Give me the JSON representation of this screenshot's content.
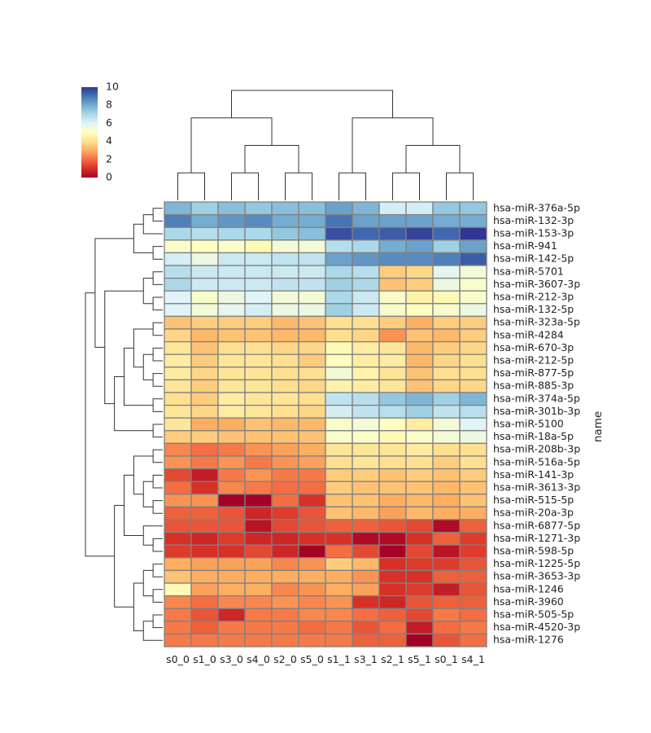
{
  "chart_data": {
    "type": "heatmap",
    "title": "",
    "xlabel": "",
    "ylabel": "name",
    "colormap": "RdYlBu",
    "vlim": [
      0,
      10
    ],
    "colorbar": {
      "ticks": [
        0,
        2,
        4,
        6,
        8,
        10
      ],
      "placement": "top-left"
    },
    "grid": true,
    "columns": [
      "s0_0",
      "s1_0",
      "s3_0",
      "s4_0",
      "s2_0",
      "s5_0",
      "s1_1",
      "s3_1",
      "s2_1",
      "s5_1",
      "s0_1",
      "s4_1"
    ],
    "rows": [
      "hsa-miR-376a-5p",
      "hsa-miR-132-3p",
      "hsa-miR-153-3p",
      "hsa-miR-941",
      "hsa-miR-142-5p",
      "hsa-miR-5701",
      "hsa-miR-3607-3p",
      "hsa-miR-212-3p",
      "hsa-miR-132-5p",
      "hsa-miR-323a-5p",
      "hsa-miR-4284",
      "hsa-miR-670-3p",
      "hsa-miR-212-5p",
      "hsa-miR-877-5p",
      "hsa-miR-885-3p",
      "hsa-miR-374a-5p",
      "hsa-miR-301b-3p",
      "hsa-miR-5100",
      "hsa-miR-18a-5p",
      "hsa-miR-208b-3p",
      "hsa-miR-516a-5p",
      "hsa-miR-141-3p",
      "hsa-miR-3613-3p",
      "hsa-miR-515-5p",
      "hsa-miR-20a-3p",
      "hsa-miR-6877-5p",
      "hsa-miR-1271-3p",
      "hsa-miR-598-5p",
      "hsa-miR-1225-5p",
      "hsa-miR-3653-3p",
      "hsa-miR-1246",
      "hsa-miR-3960",
      "hsa-miR-505-5p",
      "hsa-miR-4520-3p",
      "hsa-miR-1276"
    ],
    "values": [
      [
        7.8,
        7.2,
        7.6,
        7.4,
        7.6,
        7.6,
        8.2,
        7.8,
        6.2,
        6.2,
        7.4,
        7.4
      ],
      [
        8.8,
        8.0,
        8.4,
        8.6,
        8.0,
        8.0,
        9.0,
        8.2,
        8.2,
        8.2,
        8.0,
        8.0
      ],
      [
        7.0,
        6.8,
        7.0,
        7.0,
        7.4,
        7.6,
        9.6,
        9.2,
        9.4,
        9.8,
        9.2,
        10.0
      ],
      [
        5.2,
        5.0,
        5.2,
        4.8,
        5.4,
        5.4,
        6.8,
        7.0,
        8.0,
        8.2,
        7.2,
        8.2
      ],
      [
        6.2,
        5.6,
        6.4,
        6.4,
        6.6,
        6.6,
        8.2,
        8.4,
        8.6,
        8.6,
        8.8,
        9.4
      ],
      [
        6.8,
        6.4,
        6.4,
        6.4,
        6.4,
        6.4,
        7.0,
        6.8,
        3.6,
        3.8,
        5.8,
        5.4
      ],
      [
        7.0,
        6.4,
        6.4,
        6.4,
        6.6,
        6.6,
        7.2,
        7.0,
        3.4,
        3.6,
        5.6,
        5.2
      ],
      [
        6.0,
        5.2,
        5.6,
        6.0,
        5.4,
        5.4,
        7.0,
        6.4,
        5.2,
        4.6,
        4.8,
        5.2
      ],
      [
        6.0,
        5.4,
        5.8,
        6.2,
        5.6,
        5.6,
        7.2,
        6.4,
        5.2,
        5.0,
        5.2,
        5.6
      ],
      [
        3.4,
        3.6,
        3.6,
        3.6,
        3.2,
        3.4,
        4.0,
        4.0,
        3.6,
        3.0,
        3.6,
        3.6
      ],
      [
        3.8,
        3.2,
        3.4,
        3.4,
        3.2,
        3.2,
        4.0,
        3.8,
        2.6,
        3.4,
        3.2,
        3.6
      ],
      [
        4.2,
        3.4,
        4.0,
        4.0,
        3.8,
        3.8,
        4.8,
        4.4,
        4.2,
        3.2,
        3.6,
        3.8
      ],
      [
        4.4,
        3.6,
        4.2,
        4.2,
        4.0,
        3.6,
        5.0,
        4.4,
        4.4,
        3.2,
        3.8,
        4.0
      ],
      [
        4.4,
        3.8,
        4.2,
        4.2,
        4.0,
        4.0,
        5.4,
        4.6,
        4.2,
        3.4,
        4.0,
        4.0
      ],
      [
        4.2,
        3.6,
        4.2,
        4.2,
        4.0,
        3.8,
        4.6,
        4.4,
        4.2,
        3.4,
        3.8,
        3.8
      ],
      [
        4.0,
        3.6,
        4.4,
        4.2,
        4.2,
        4.0,
        6.6,
        6.8,
        7.4,
        7.8,
        7.2,
        7.8
      ],
      [
        4.2,
        3.8,
        4.4,
        4.2,
        4.0,
        3.8,
        6.2,
        6.6,
        6.8,
        7.2,
        6.6,
        6.8
      ],
      [
        4.2,
        3.0,
        3.0,
        3.4,
        3.2,
        3.2,
        5.2,
        5.4,
        5.0,
        4.4,
        5.4,
        6.0
      ],
      [
        3.6,
        3.6,
        3.4,
        3.4,
        3.4,
        3.4,
        5.2,
        5.2,
        4.8,
        5.2,
        5.4,
        5.6
      ],
      [
        2.4,
        2.0,
        2.2,
        2.6,
        2.8,
        3.0,
        4.2,
        4.2,
        4.2,
        4.4,
        4.0,
        4.0
      ],
      [
        2.6,
        2.2,
        2.6,
        2.2,
        2.6,
        2.8,
        4.0,
        4.2,
        4.0,
        4.0,
        3.6,
        4.0
      ],
      [
        1.4,
        0.6,
        2.2,
        2.6,
        2.2,
        2.2,
        3.6,
        3.6,
        3.4,
        3.6,
        3.4,
        3.6
      ],
      [
        2.0,
        1.0,
        2.4,
        2.2,
        2.0,
        2.0,
        3.6,
        3.4,
        3.4,
        3.4,
        3.2,
        3.4
      ],
      [
        2.6,
        2.6,
        0.0,
        0.0,
        2.0,
        1.0,
        3.4,
        3.4,
        3.0,
        3.2,
        3.0,
        3.4
      ],
      [
        1.8,
        1.8,
        1.6,
        0.8,
        1.2,
        1.6,
        3.4,
        3.2,
        2.8,
        3.2,
        3.0,
        3.0
      ],
      [
        1.6,
        1.6,
        1.6,
        0.4,
        1.4,
        1.6,
        1.8,
        1.8,
        1.6,
        1.4,
        0.2,
        1.8
      ],
      [
        1.0,
        0.8,
        1.2,
        0.8,
        0.8,
        1.0,
        1.0,
        0.2,
        0.2,
        1.0,
        1.8,
        1.2
      ],
      [
        1.2,
        1.0,
        1.0,
        1.4,
        0.8,
        0.0,
        2.0,
        1.4,
        0.0,
        1.4,
        0.4,
        1.2
      ],
      [
        3.0,
        2.8,
        2.8,
        2.8,
        2.4,
        2.6,
        3.6,
        3.2,
        1.0,
        1.2,
        1.2,
        1.6
      ],
      [
        3.4,
        3.0,
        3.0,
        3.0,
        3.0,
        3.0,
        3.0,
        2.6,
        1.0,
        1.0,
        1.8,
        1.8
      ],
      [
        4.8,
        2.8,
        3.0,
        3.0,
        2.4,
        2.6,
        3.0,
        2.8,
        1.0,
        1.2,
        0.6,
        1.6
      ],
      [
        2.4,
        2.0,
        2.4,
        2.4,
        2.6,
        2.4,
        2.6,
        1.0,
        0.8,
        1.6,
        1.8,
        1.8
      ],
      [
        2.2,
        1.6,
        0.8,
        2.2,
        2.2,
        2.4,
        2.4,
        2.0,
        1.8,
        1.4,
        2.2,
        2.0
      ],
      [
        2.2,
        1.8,
        2.2,
        2.2,
        2.2,
        2.0,
        2.2,
        1.6,
        2.0,
        0.6,
        2.0,
        2.2
      ],
      [
        2.2,
        2.2,
        2.2,
        2.2,
        2.2,
        2.2,
        2.2,
        1.8,
        1.8,
        0.0,
        1.6,
        2.0
      ]
    ],
    "column_dendrogram": [
      [
        8,
        9,
        "a"
      ],
      [
        10,
        11,
        "b"
      ],
      [
        4,
        5,
        "c"
      ],
      [
        "a",
        "b",
        "d"
      ],
      [
        2,
        3,
        "e"
      ],
      [
        "e",
        "c",
        "f"
      ],
      [
        6,
        7,
        "g"
      ],
      [
        0,
        1,
        "h"
      ],
      [
        "h",
        "f",
        "i"
      ],
      [
        "g",
        "d",
        "j"
      ],
      [
        "i",
        "j",
        "k"
      ]
    ],
    "row_dendrogram": [
      [
        0,
        1,
        "A"
      ],
      [
        3,
        4,
        "B"
      ],
      [
        "A",
        2,
        "C"
      ],
      [
        "C",
        "B",
        "D"
      ],
      [
        5,
        6,
        "E"
      ],
      [
        7,
        8,
        "F"
      ],
      [
        "E",
        "F",
        "G"
      ],
      [
        9,
        10,
        "H"
      ],
      [
        11,
        12,
        "I"
      ],
      [
        13,
        14,
        "J"
      ],
      [
        "I",
        "J",
        "K"
      ],
      [
        "H",
        "K",
        "L"
      ],
      [
        15,
        16,
        "M"
      ],
      [
        "L",
        "M",
        "N"
      ],
      [
        17,
        18,
        "O"
      ],
      [
        "N",
        "O",
        "P"
      ],
      [
        "G",
        "P",
        "Q"
      ],
      [
        "D",
        "Q",
        "R"
      ],
      [
        19,
        20,
        "S"
      ],
      [
        21,
        22,
        "T"
      ],
      [
        23,
        24,
        "U"
      ],
      [
        "T",
        "U",
        "V"
      ],
      [
        "S",
        "V",
        "W"
      ],
      [
        26,
        27,
        "X"
      ],
      [
        25,
        "X",
        "Y"
      ],
      [
        "W",
        "Y",
        "Z"
      ],
      [
        28,
        29,
        "a1"
      ],
      [
        30,
        31,
        "b1"
      ],
      [
        "a1",
        "b1",
        "c1"
      ],
      [
        32,
        33,
        "d1"
      ],
      [
        "d1",
        34,
        "e1"
      ],
      [
        "c1",
        "e1",
        "f1"
      ],
      [
        "Z",
        "f1",
        "g1"
      ],
      [
        "R",
        "g1",
        "h1"
      ]
    ]
  }
}
